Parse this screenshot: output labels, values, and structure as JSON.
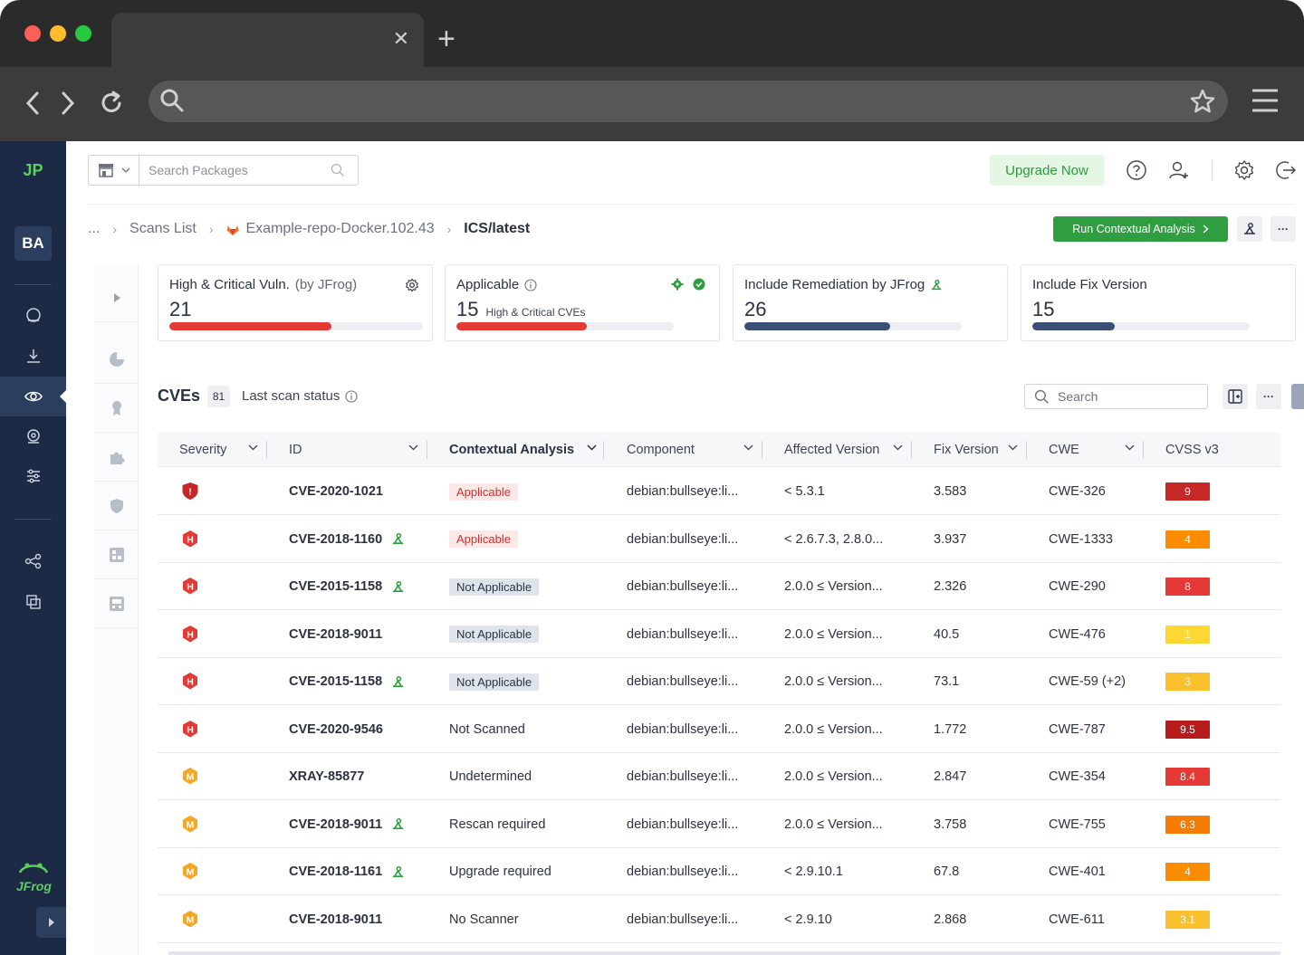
{
  "header": {
    "search_placeholder": "Search Packages",
    "upgrade_label": "Upgrade Now"
  },
  "sidebar": {
    "logo": "JP",
    "project": "BA",
    "brand": "JFrog"
  },
  "breadcrumb": {
    "ellipsis": "...",
    "items": [
      "Scans List",
      "Example-repo-Docker.102.43",
      "ICS/latest"
    ]
  },
  "actions": {
    "run_label": "Run Contextual Analysis",
    "more": "···"
  },
  "cards": [
    {
      "title": "High & Critical Vuln.",
      "subtitle": "(by JFrog)",
      "value": "21",
      "progress": 0.64,
      "color": "#e53935"
    },
    {
      "title": "Applicable",
      "value": "15",
      "value_note": "High & Critical CVEs",
      "progress": 0.6,
      "color": "#e53935"
    },
    {
      "title": "Include Remediation by JFrog",
      "value": "26",
      "progress": 0.67,
      "color": "#3b4f76"
    },
    {
      "title": "Include Fix Version",
      "value": "15",
      "progress": 0.38,
      "color": "#3b4f76"
    }
  ],
  "table": {
    "title": "CVEs",
    "count": "81",
    "last_scan": "Last scan status",
    "search_placeholder": "Search",
    "more": "···",
    "columns": [
      "Severity",
      "ID",
      "Contextual Analysis",
      "Component",
      "Affected Version",
      "Fix Version",
      "CWE",
      "CVSS v3"
    ],
    "rows": [
      {
        "severity": "critical",
        "sev_letter": "!",
        "id": "CVE-2020-1021",
        "remediation": false,
        "ca": "Applicable",
        "ca_type": "app",
        "component": "debian:bullseye:li...",
        "affected": "< 5.3.1",
        "fix": "3.583",
        "cwe": "CWE-326",
        "cvss": "9",
        "cvss_color": "#c62828"
      },
      {
        "severity": "high",
        "sev_letter": "H",
        "id": "CVE-2018-1160",
        "remediation": true,
        "ca": "Applicable",
        "ca_type": "app",
        "component": "debian:bullseye:li...",
        "affected": "< 2.6.7.3, 2.8.0...",
        "fix": "3.937",
        "cwe": "CWE-1333",
        "cvss": "4",
        "cvss_color": "#fb8c00"
      },
      {
        "severity": "high",
        "sev_letter": "H",
        "id": "CVE-2015-1158",
        "remediation": true,
        "ca": "Not Applicable",
        "ca_type": "na",
        "component": "debian:bullseye:li...",
        "affected": "2.0.0 ≤ Version...",
        "fix": "2.326",
        "cwe": "CWE-290",
        "cvss": "8",
        "cvss_color": "#e53935"
      },
      {
        "severity": "high",
        "sev_letter": "H",
        "id": "CVE-2018-9011",
        "remediation": false,
        "ca": "Not Applicable",
        "ca_type": "na",
        "component": "debian:bullseye:li...",
        "affected": "2.0.0 ≤ Version...",
        "fix": "40.5",
        "cwe": "CWE-476",
        "cvss": "1",
        "cvss_color": "#fdd835"
      },
      {
        "severity": "high",
        "sev_letter": "H",
        "id": "CVE-2015-1158",
        "remediation": true,
        "ca": "Not Applicable",
        "ca_type": "na",
        "component": "debian:bullseye:li...",
        "affected": "2.0.0 ≤ Version...",
        "fix": "73.1",
        "cwe": "CWE-59 (+2)",
        "cvss": "3",
        "cvss_color": "#fbc02d"
      },
      {
        "severity": "high",
        "sev_letter": "H",
        "id": "CVE-2020-9546",
        "remediation": false,
        "ca": "Not Scanned",
        "ca_type": "text",
        "component": "debian:bullseye:li...",
        "affected": "2.0.0 ≤ Version...",
        "fix": "1.772",
        "cwe": "CWE-787",
        "cvss": "9.5",
        "cvss_color": "#b71c1c"
      },
      {
        "severity": "medium",
        "sev_letter": "M",
        "id": "XRAY-85877",
        "remediation": false,
        "ca": "Undetermined",
        "ca_type": "text",
        "component": "debian:bullseye:li...",
        "affected": "2.0.0 ≤ Version...",
        "fix": "2.847",
        "cwe": "CWE-354",
        "cvss": "8.4",
        "cvss_color": "#e53935"
      },
      {
        "severity": "medium",
        "sev_letter": "M",
        "id": "CVE-2018-9011",
        "remediation": true,
        "ca": "Rescan required",
        "ca_type": "text",
        "component": "debian:bullseye:li...",
        "affected": "2.0.0 ≤ Version...",
        "fix": "3.758",
        "cwe": "CWE-755",
        "cvss": "6.3",
        "cvss_color": "#f57c00"
      },
      {
        "severity": "medium",
        "sev_letter": "M",
        "id": "CVE-2018-1161",
        "remediation": true,
        "ca": "Upgrade required",
        "ca_type": "text",
        "component": "debian:bullseye:li...",
        "affected": "< 2.9.10.1",
        "fix": "67.8",
        "cwe": "CWE-401",
        "cvss": "4",
        "cvss_color": "#fb8c00"
      },
      {
        "severity": "medium",
        "sev_letter": "M",
        "id": "CVE-2018-9011",
        "remediation": false,
        "ca": "No Scanner",
        "ca_type": "text",
        "component": "debian:bullseye:li...",
        "affected": "< 2.9.10",
        "fix": "2.868",
        "cwe": "CWE-611",
        "cvss": "3.1",
        "cvss_color": "#fbc02d"
      }
    ]
  }
}
